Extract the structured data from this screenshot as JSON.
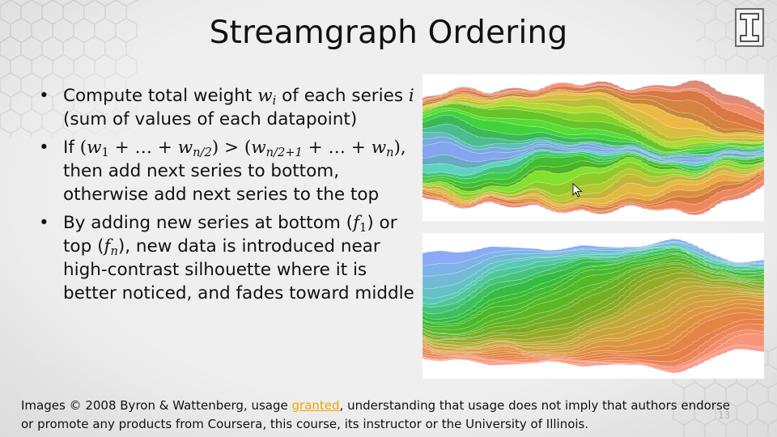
{
  "slide": {
    "title": "Streamgraph Ordering",
    "page_number": "13"
  },
  "bullets": {
    "b1": {
      "t1": "Compute total weight ",
      "var_w": "w",
      "sub_i": "i",
      "t2": " of each series ",
      "var_i": "i",
      "t3": " (sum of values of each datapoint)"
    },
    "b2": {
      "if": "If ",
      "open1": "(",
      "w1": "w",
      "sub1": "1",
      "plus1": " + … + ",
      "w2": "w",
      "sub_n2": "n/2",
      "gt": ") > (",
      "w3": "w",
      "sub_n21": "n/2+1",
      "plus2": " + … + ",
      "w4": "w",
      "sub_n": "n",
      "close": "),",
      "rest": " then add next series to bottom, otherwise add next series to the top"
    },
    "b3": {
      "t1": "By adding new series at bottom (",
      "f1": "f",
      "sub_1": "1",
      "t2": ") or top (",
      "fn": "f",
      "sub_n": "n",
      "t3": "), new data is introduced near high-contrast silhouette where it is better noticed, and fades toward middle"
    },
    "bullet_glyph": "•"
  },
  "credits": {
    "before_link": "Images © 2008 Byron & Wattenberg, usage ",
    "link": "granted",
    "after_link": ", understanding that usage does not imply that authors endorse or promote any products from Coursera, this course, its instructor or the University of Illinois."
  },
  "colors": {
    "link": "#f0a800",
    "stream_palette": [
      "#7d9be0",
      "#55c4b0",
      "#35c43c",
      "#5fd02a",
      "#9fcf2a",
      "#d7c040",
      "#e4a040",
      "#e07a45",
      "#e58f80"
    ]
  },
  "icons": {
    "logo": "university-block-i-logo-icon",
    "cursor": "mouse-pointer-icon"
  }
}
